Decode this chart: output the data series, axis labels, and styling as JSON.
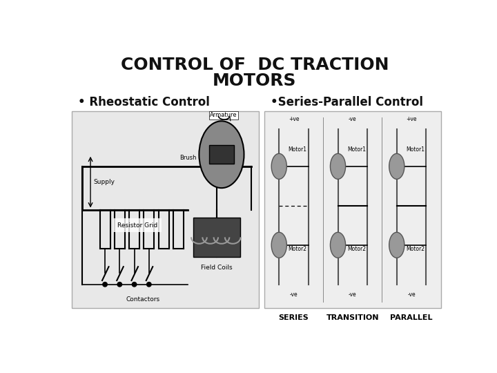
{
  "bg_color": "#ffffff",
  "title_line1": "CONTROL OF  DC TRACTION",
  "title_line2": "MOTORS",
  "title_fontsize": 18,
  "title_color": "#111111",
  "bullet1_text": "• Rheostatic Control",
  "bullet2_text": "•Series-Parallel Control",
  "bullet_fontsize": 12,
  "bullet_color": "#111111",
  "left_box_color": "#e8e8e8",
  "right_box_color": "#eeeeee",
  "motor_color": "#999999",
  "motor_edge": "#555555",
  "field_coils_bg": "#444444",
  "coil_color": "#999999",
  "brush_color": "#333333",
  "arm_color": "#888888"
}
